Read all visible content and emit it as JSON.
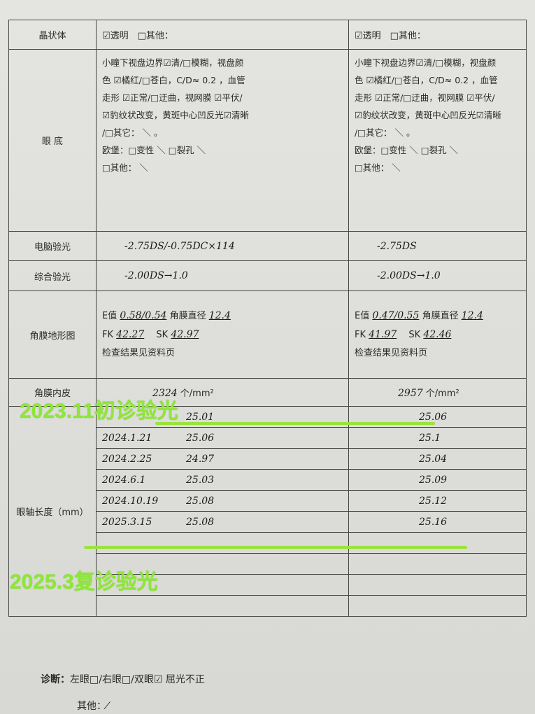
{
  "rows": {
    "lens": {
      "label": "晶状体",
      "left": "☑透明　□其他：",
      "right": "☑透明　□其他："
    },
    "fundus": {
      "label": "眼 底",
      "left": [
        "小瞳下视盘边界☑清/□模糊，视盘颜",
        "色 ☑橘红/□苍白，C/D≈ 0.2 ，血管",
        "走形 ☑正常/□迂曲，视网膜 ☑平伏/",
        "☑豹纹状改变，黄斑中心凹反光☑清晰",
        "/□其它： ＼ 。",
        "欧堡：□变性 ＼ □裂孔 ＼",
        "□其他： ＼"
      ],
      "right": [
        "小瞳下视盘边界☑清/□模糊，视盘颜",
        "色 ☑橘红/□苍白，C/D≈ 0.2 ，血管",
        "走形 ☑正常/□迂曲，视网膜 ☑平伏/",
        "☑豹纹状改变，黄斑中心凹反光☑清晰",
        "/□其它： ＼ 。",
        "欧堡：□变性 ＼ □裂孔 ＼",
        "□其他： ＼"
      ]
    },
    "auto_refraction": {
      "label": "电脑验光",
      "left": "-2.75DS/-0.75DC×114",
      "right": "-2.75DS"
    },
    "subjective_refraction": {
      "label": "综合验光",
      "left": "-2.00DS→1.0",
      "right": "-2.00DS→1.0"
    },
    "topography": {
      "label": "角膜地形图",
      "left": {
        "e_label": "E值",
        "e": "0.58/0.54",
        "d_label": "角膜直径",
        "d": "12.4",
        "fk_label": "FK",
        "fk": "42.27",
        "sk_label": "SK",
        "sk": "42.97",
        "note": "检查结果见资料页"
      },
      "right": {
        "e_label": "E值",
        "e": "0.47/0.55",
        "d_label": "角膜直径",
        "d": "12.4",
        "fk_label": "FK",
        "fk": "41.97",
        "sk_label": "SK",
        "sk": "42.46",
        "note": "检查结果见资料页"
      }
    },
    "endothelium": {
      "label": "角膜内皮",
      "left": "2324",
      "right": "2957",
      "unit": "个/mm²"
    },
    "axial": {
      "label": "眼轴长度（mm）",
      "entries": [
        {
          "date": "",
          "left": "25.01",
          "right": "25.06"
        },
        {
          "date": "2024.1.21",
          "left": "25.06",
          "right": "25.1"
        },
        {
          "date": "2024.2.25",
          "left": "24.97",
          "right": "25.04"
        },
        {
          "date": "2024.6.1",
          "left": "25.03",
          "right": "25.09"
        },
        {
          "date": "2024.10.19",
          "left": "25.08",
          "right": "25.12"
        },
        {
          "date": "2025.3.15",
          "left": "25.08",
          "right": "25.16"
        },
        {
          "date": "",
          "left": "",
          "right": ""
        },
        {
          "date": "",
          "left": "",
          "right": ""
        },
        {
          "date": "",
          "left": "",
          "right": ""
        },
        {
          "date": "",
          "left": "",
          "right": ""
        }
      ]
    }
  },
  "overlay": {
    "first": "2023.11初诊验光",
    "second": "2025.3复诊验光",
    "color": "#8fe63a"
  },
  "footer": {
    "diagnosis_label": "诊断：",
    "diagnosis": "左眼□/右眼□/双眼☑ 屈光不正",
    "other_label": "其他：",
    "other": "⁄"
  }
}
